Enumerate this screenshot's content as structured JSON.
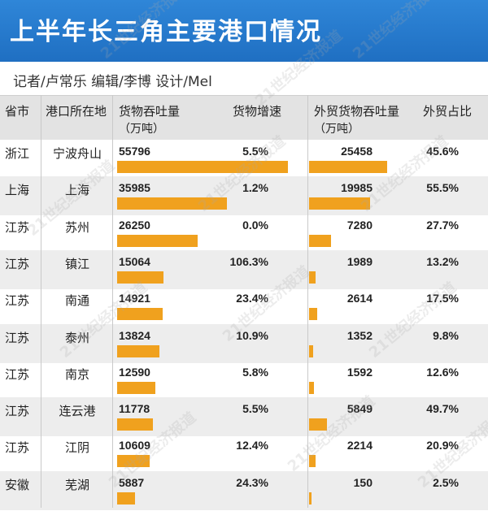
{
  "title": "上半年长三角主要港口情况",
  "credit": "记者/卢常乐 编辑/李博 设计/Mel",
  "headers": {
    "province": "省市",
    "port": "港口所在地",
    "throughput": "货物吞吐量",
    "throughput_unit": "（万吨）",
    "growth": "货物增速",
    "foreign": "外贸货物吞吐量",
    "foreign_unit": "（万吨）",
    "share": "外贸占比"
  },
  "watermark": "21世纪经济报道",
  "colors": {
    "header_bg": "#2577cc",
    "bar": "#f0a11e",
    "row_alt": "#ededed"
  },
  "chart_data": {
    "type": "table",
    "title": "上半年长三角主要港口情况",
    "rows": [
      {
        "province": "浙江",
        "port": "宁波舟山",
        "throughput": 55796,
        "throughput_label": "55796",
        "growth": "5.5%",
        "foreign": 25458,
        "foreign_label": "25458",
        "share": "45.6%"
      },
      {
        "province": "上海",
        "port": "上海",
        "throughput": 35985,
        "throughput_label": "35985",
        "growth": "1.2%",
        "foreign": 19985,
        "foreign_label": "19985",
        "share": "55.5%"
      },
      {
        "province": "江苏",
        "port": "苏州",
        "throughput": 26250,
        "throughput_label": "26250",
        "growth": "0.0%",
        "foreign": 7280,
        "foreign_label": "7280",
        "share": "27.7%"
      },
      {
        "province": "江苏",
        "port": "镇江",
        "throughput": 15064,
        "throughput_label": "15064",
        "growth": "106.3%",
        "foreign": 1989,
        "foreign_label": "1989",
        "share": "13.2%"
      },
      {
        "province": "江苏",
        "port": "南通",
        "throughput": 14921,
        "throughput_label": "14921",
        "growth": "23.4%",
        "foreign": 2614,
        "foreign_label": "2614",
        "share": "17.5%"
      },
      {
        "province": "江苏",
        "port": "泰州",
        "throughput": 13824,
        "throughput_label": "13824",
        "growth": "10.9%",
        "foreign": 1352,
        "foreign_label": "1352",
        "share": "9.8%"
      },
      {
        "province": "江苏",
        "port": "南京",
        "throughput": 12590,
        "throughput_label": "12590",
        "growth": "5.8%",
        "foreign": 1592,
        "foreign_label": "1592",
        "share": "12.6%"
      },
      {
        "province": "江苏",
        "port": "连云港",
        "throughput": 11778,
        "throughput_label": "11778",
        "growth": "5.5%",
        "foreign": 5849,
        "foreign_label": "5849",
        "share": "49.7%"
      },
      {
        "province": "江苏",
        "port": "江阴",
        "throughput": 10609,
        "throughput_label": "10609",
        "growth": "12.4%",
        "foreign": 2214,
        "foreign_label": "2214",
        "share": "20.9%"
      },
      {
        "province": "安徽",
        "port": "芜湖",
        "throughput": 5887,
        "throughput_label": "5887",
        "growth": "24.3%",
        "foreign": 150,
        "foreign_label": "150",
        "share": "2.5%"
      }
    ]
  }
}
